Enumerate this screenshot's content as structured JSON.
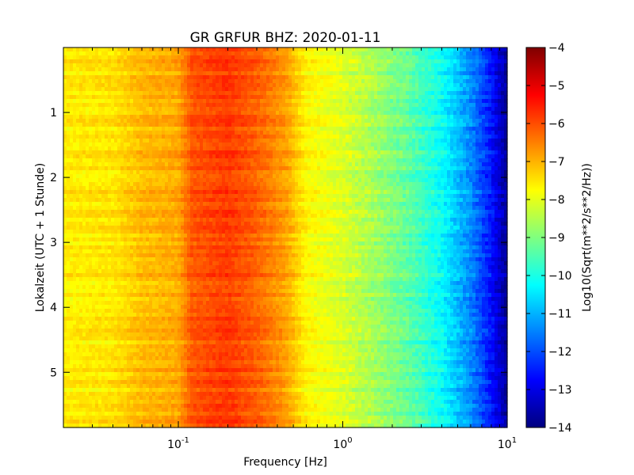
{
  "chart_data": {
    "type": "heatmap",
    "title": "GR GRFUR BHZ: 2020-01-11",
    "xlabel": "Frequency [Hz]",
    "ylabel": "Lokalzeit (UTC + 1 Stunde)",
    "x_scale": "log",
    "xlim": [
      0.02,
      10
    ],
    "ylim": [
      5.85,
      0
    ],
    "x_ticks": [
      {
        "value": 0.1,
        "base": "10",
        "exp": "-1"
      },
      {
        "value": 1,
        "base": "10",
        "exp": "0"
      },
      {
        "value": 10,
        "base": "10",
        "exp": "1"
      }
    ],
    "y_ticks": [
      {
        "value": 1,
        "label": "1"
      },
      {
        "value": 2,
        "label": "2"
      },
      {
        "value": 3,
        "label": "3"
      },
      {
        "value": 4,
        "label": "4"
      },
      {
        "value": 5,
        "label": "5"
      }
    ],
    "colorbar": {
      "label": "Log10(Sqrt(m**2/s**2/Hz))",
      "range": [
        -14,
        -4
      ],
      "colormap": "jet",
      "ticks": [
        {
          "value": -4,
          "label": "−4"
        },
        {
          "value": -5,
          "label": "−5"
        },
        {
          "value": -6,
          "label": "−6"
        },
        {
          "value": -7,
          "label": "−7"
        },
        {
          "value": -8,
          "label": "−8"
        },
        {
          "value": -9,
          "label": "−9"
        },
        {
          "value": -10,
          "label": "−10"
        },
        {
          "value": -11,
          "label": "−11"
        },
        {
          "value": -12,
          "label": "−12"
        },
        {
          "value": -13,
          "label": "−13"
        },
        {
          "value": -14,
          "label": "−14"
        }
      ]
    },
    "spectrum_profile": {
      "frequencies": [
        0.02,
        0.04,
        0.06,
        0.1,
        0.12,
        0.2,
        0.3,
        0.45,
        0.6,
        1.0,
        1.5,
        2.5,
        4,
        6,
        8,
        10
      ],
      "values": [
        -7.6,
        -7.5,
        -7.1,
        -6.9,
        -6.1,
        -5.8,
        -6.2,
        -6.8,
        -7.7,
        -8.1,
        -8.6,
        -9.3,
        -10.2,
        -11.4,
        -12.6,
        -13.8
      ]
    }
  }
}
